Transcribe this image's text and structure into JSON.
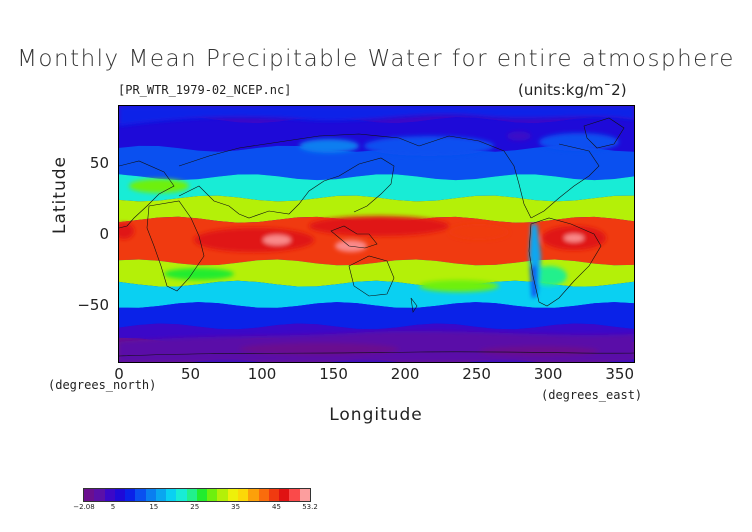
{
  "title": "Monthly Mean Precipitable Water for entire atmosphere",
  "file_label": "[PR_WTR_1979-02_NCEP.nc]",
  "units_label": "(units:kg/m¯2)",
  "y_axis": {
    "label": "Latitude",
    "unit_label": "(degrees_north)",
    "range": [
      -90,
      90
    ],
    "ticks": [
      50,
      0,
      -50
    ],
    "tick_labels": [
      "50",
      "0",
      "−50"
    ]
  },
  "x_axis": {
    "label": "Longitude",
    "unit_label": "(degrees_east)",
    "range": [
      0,
      360
    ],
    "ticks": [
      0,
      50,
      100,
      150,
      200,
      250,
      300,
      350
    ],
    "tick_labels": [
      "0",
      "50",
      "100",
      "150",
      "200",
      "250",
      "300",
      "350"
    ]
  },
  "colorbar": {
    "min": -2.08,
    "max": 53.2,
    "ticks": [
      -2.08,
      5,
      15,
      25,
      35,
      45,
      53.2
    ],
    "tick_labels": [
      "−2.08",
      "5",
      "15",
      "25",
      "35",
      "45",
      "53.2"
    ],
    "colors": [
      "#6a0f8f",
      "#5a10a8",
      "#3b08c8",
      "#1e0ad8",
      "#0a22e8",
      "#0a50f0",
      "#0a7ef0",
      "#0aa6f0",
      "#0ad0f2",
      "#18ecd6",
      "#22f08c",
      "#22ec2e",
      "#6ef00e",
      "#b4f008",
      "#eef00a",
      "#fcd808",
      "#fca00a",
      "#fa6c0c",
      "#f03a10",
      "#e01212",
      "#fa4a4a",
      "#fc9e9e"
    ]
  },
  "chart_data": {
    "type": "heatmap",
    "variable": "Precipitable Water for entire atmosphere",
    "units": "kg/m¯2",
    "period": "1979-02",
    "xlim": [
      0,
      360
    ],
    "ylim": [
      -90,
      90
    ],
    "zmin": -2.08,
    "zmax": 53.2,
    "latitude_bands": [
      {
        "lat_range": [
          80,
          90
        ],
        "approx_value": 4
      },
      {
        "lat_range": [
          60,
          80
        ],
        "approx_value": 6
      },
      {
        "lat_range": [
          40,
          60
        ],
        "approx_value": 12
      },
      {
        "lat_range": [
          25,
          40
        ],
        "approx_value": 22
      },
      {
        "lat_range": [
          10,
          25
        ],
        "approx_value": 32
      },
      {
        "lat_range": [
          -20,
          10
        ],
        "approx_value": 45
      },
      {
        "lat_range": [
          -35,
          -20
        ],
        "approx_value": 32
      },
      {
        "lat_range": [
          -50,
          -35
        ],
        "approx_value": 20
      },
      {
        "lat_range": [
          -65,
          -50
        ],
        "approx_value": 9
      },
      {
        "lat_range": [
          -75,
          -65
        ],
        "approx_value": 4
      },
      {
        "lat_range": [
          -90,
          -75
        ],
        "approx_value": 0
      }
    ]
  }
}
